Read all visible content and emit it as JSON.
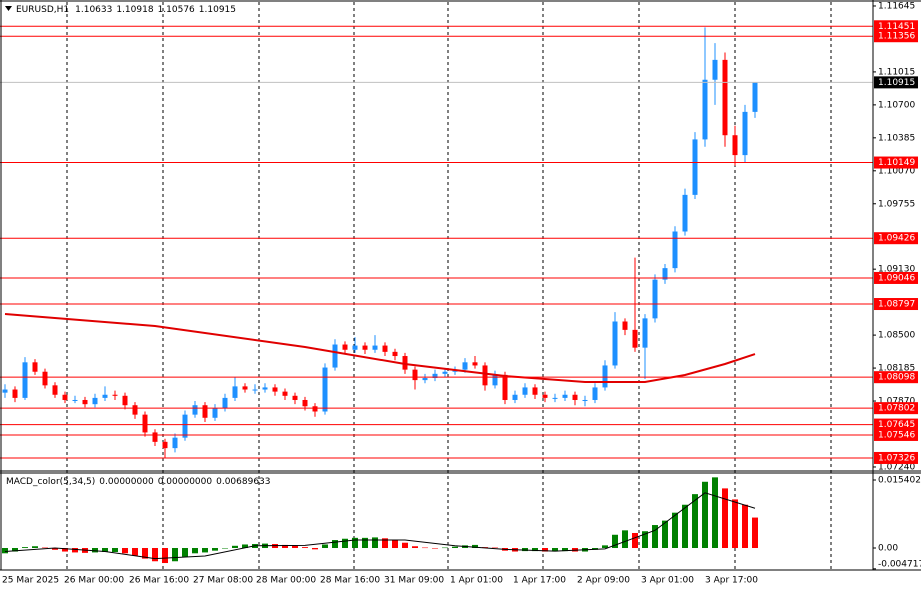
{
  "chart_data": {
    "type": "candlestick",
    "title": "EURUSD,H1",
    "up_color": "#1e90ff",
    "down_color": "#ff0000",
    "ylim": [
      1.07211,
      1.11683
    ],
    "yticks": [
      1.11645,
      1.11015,
      {
        "value": 1.107,
        "label": "1.10700"
      },
      1.10385,
      {
        "value": 1.1007,
        "label": "1.10070"
      },
      1.09755,
      {
        "value": 1.0913,
        "label": "1.09130"
      },
      {
        "value": 1.085,
        "label": "1.08500"
      },
      1.08185,
      {
        "value": 1.0787,
        "label": "1.07870"
      },
      {
        "value": 1.0724,
        "label": "1.07240"
      }
    ],
    "levels": [
      1.11451,
      1.11356,
      1.10149,
      1.09426,
      1.09046,
      1.08797,
      1.08098,
      1.07802,
      1.07645,
      1.07546,
      1.07326
    ],
    "level_color": "#ff0000",
    "x_labels": [
      "25 Mar 2025",
      "26 Mar 00:00",
      "26 Mar 16:00",
      "27 Mar 08:00",
      "28 Mar 00:00",
      "28 Mar 16:00",
      "31 Mar 09:00",
      "1 Apr 01:00",
      "1 Apr 17:00",
      "2 Apr 09:00",
      "3 Apr 01:00",
      "3 Apr 17:00"
    ],
    "candles": [
      [
        1.0795,
        1.0803,
        1.079,
        1.0798
      ],
      [
        1.0798,
        1.0801,
        1.0786,
        1.079
      ],
      [
        1.079,
        1.0829,
        1.0788,
        1.0824
      ],
      [
        1.0824,
        1.0827,
        1.0812,
        1.0815
      ],
      [
        1.0815,
        1.0818,
        1.0799,
        1.0802
      ],
      [
        1.0802,
        1.0805,
        1.079,
        1.0793
      ],
      [
        1.0793,
        1.0796,
        1.0785,
        1.0788
      ],
      [
        1.0788,
        1.0792,
        1.0785,
        1.0788
      ],
      [
        1.0788,
        1.0791,
        1.0781,
        1.0784
      ],
      [
        1.0784,
        1.0794,
        1.0781,
        1.079
      ],
      [
        1.079,
        1.0801,
        1.0787,
        1.0793
      ],
      [
        1.0793,
        1.0797,
        1.0788,
        1.0792
      ],
      [
        1.0792,
        1.0795,
        1.0779,
        1.0783
      ],
      [
        1.0783,
        1.0786,
        1.077,
        1.0774
      ],
      [
        1.0774,
        1.0777,
        1.0753,
        1.0757
      ],
      [
        1.0757,
        1.076,
        1.0744,
        1.0748
      ],
      [
        1.0748,
        1.0751,
        1.0733,
        1.0742
      ],
      [
        1.0742,
        1.0756,
        1.0738,
        1.0752
      ],
      [
        1.0752,
        1.0778,
        1.0749,
        1.0774
      ],
      [
        1.0774,
        1.0787,
        1.0771,
        1.0783
      ],
      [
        1.0783,
        1.0786,
        1.0767,
        1.0771
      ],
      [
        1.0771,
        1.0784,
        1.0768,
        1.078
      ],
      [
        1.078,
        1.0794,
        1.0777,
        1.079
      ],
      [
        1.079,
        1.081,
        1.0787,
        1.0801
      ],
      [
        1.0801,
        1.0804,
        1.0795,
        1.0798
      ],
      [
        1.0798,
        1.0803,
        1.0794,
        1.0798
      ],
      [
        1.0798,
        1.0804,
        1.0795,
        1.08
      ],
      [
        1.08,
        1.0803,
        1.0792,
        1.0796
      ],
      [
        1.0796,
        1.0799,
        1.0788,
        1.0792
      ],
      [
        1.0792,
        1.0795,
        1.0784,
        1.0788
      ],
      [
        1.0788,
        1.0791,
        1.0778,
        1.0782
      ],
      [
        1.0782,
        1.0785,
        1.0772,
        1.0777
      ],
      [
        1.0777,
        1.0823,
        1.0774,
        1.0819
      ],
      [
        1.0819,
        1.0846,
        1.0816,
        1.0841
      ],
      [
        1.0841,
        1.0844,
        1.0832,
        1.0836
      ],
      [
        1.0836,
        1.0848,
        1.0833,
        1.084
      ],
      [
        1.084,
        1.0843,
        1.0832,
        1.0836
      ],
      [
        1.0836,
        1.085,
        1.0833,
        1.084
      ],
      [
        1.084,
        1.0843,
        1.083,
        1.0834
      ],
      [
        1.0834,
        1.0837,
        1.0826,
        1.083
      ],
      [
        1.083,
        1.0833,
        1.0813,
        1.0817
      ],
      [
        1.0817,
        1.082,
        1.0798,
        1.0807
      ],
      [
        1.0807,
        1.0813,
        1.0804,
        1.0809
      ],
      [
        1.0809,
        1.0817,
        1.0806,
        1.0813
      ],
      [
        1.0813,
        1.0818,
        1.081,
        1.0815
      ],
      [
        1.0815,
        1.082,
        1.0812,
        1.0817
      ],
      [
        1.0817,
        1.0828,
        1.0814,
        1.0824
      ],
      [
        1.0824,
        1.083,
        1.0818,
        1.0821
      ],
      [
        1.0821,
        1.0824,
        1.0797,
        1.0802
      ],
      [
        1.0802,
        1.0816,
        1.0799,
        1.0812
      ],
      [
        1.0812,
        1.0815,
        1.0784,
        1.0788
      ],
      [
        1.0788,
        1.0797,
        1.0785,
        1.0793
      ],
      [
        1.0793,
        1.0804,
        1.079,
        1.08
      ],
      [
        1.08,
        1.0803,
        1.0789,
        1.0793
      ],
      [
        1.0793,
        1.0796,
        1.0786,
        1.079
      ],
      [
        1.079,
        1.0794,
        1.0786,
        1.079
      ],
      [
        1.079,
        1.0797,
        1.0787,
        1.0793
      ],
      [
        1.0793,
        1.0796,
        1.0783,
        1.0788
      ],
      [
        1.0788,
        1.0792,
        1.0782,
        1.0788
      ],
      [
        1.0788,
        1.0804,
        1.0785,
        1.08
      ],
      [
        1.08,
        1.0826,
        1.0797,
        1.0821
      ],
      [
        1.0821,
        1.0872,
        1.0818,
        1.0863
      ],
      [
        1.0863,
        1.0866,
        1.085,
        1.0855
      ],
      [
        1.0855,
        1.0924,
        1.0834,
        1.0838
      ],
      [
        1.0838,
        1.087,
        1.0808,
        1.0866
      ],
      [
        1.0866,
        1.0908,
        1.0862,
        1.0903
      ],
      [
        1.0903,
        1.0918,
        1.0899,
        1.0914
      ],
      [
        1.0914,
        1.0954,
        1.091,
        1.0949
      ],
      [
        1.0949,
        1.099,
        1.0945,
        1.0984
      ],
      [
        1.0984,
        1.1044,
        1.098,
        1.1037
      ],
      [
        1.1037,
        1.1144,
        1.103,
        1.1094
      ],
      [
        1.1094,
        1.1129,
        1.107,
        1.1113
      ],
      [
        1.1113,
        1.112,
        1.103,
        1.1041
      ],
      [
        1.1041,
        1.105,
        1.1012,
        1.1022
      ],
      [
        1.1022,
        1.107,
        1.1015,
        1.10633
      ],
      [
        1.10633,
        1.10918,
        1.10576,
        1.10915
      ]
    ],
    "ma": {
      "color": "#e00000",
      "x": [
        0,
        15,
        30,
        40,
        50,
        58,
        64,
        68,
        72,
        75
      ],
      "values": [
        1.08702,
        1.08587,
        1.08386,
        1.08224,
        1.08109,
        1.08052,
        1.08052,
        1.08119,
        1.08224,
        1.08319
      ]
    },
    "price_line_color": "#c0c0c0",
    "macd": {
      "title": "MACD_color(5,34,5)",
      "readout": [
        {
          "value": 0,
          "label": "0.00000000"
        },
        {
          "value": 0,
          "label": "0.00000000"
        }
      ],
      "up_color": "#008000",
      "down_color": "#ff0000",
      "ylim": [
        -0.00498,
        0.01676
      ],
      "yticks": [
        {
          "value": 0.015402,
          "label": "0.0154020"
        },
        {
          "value": 0,
          "label": "0.00"
        },
        -0.0047171
      ],
      "histogram": [
        -0.0012,
        -0.0008,
        0.0002,
        0.0004,
        0.0001,
        -0.0004,
        -0.0008,
        -0.001,
        -0.0011,
        -0.001,
        -0.0009,
        -0.0009,
        -0.0012,
        -0.0017,
        -0.0024,
        -0.003,
        -0.0034,
        -0.003,
        -0.002,
        -0.0012,
        -0.001,
        -0.0006,
        -0.0001,
        0.0005,
        0.0008,
        0.0009,
        0.001,
        0.0009,
        0.0007,
        0.0005,
        0.0002,
        -0.0003,
        0.0008,
        0.0018,
        0.0021,
        0.0023,
        0.0023,
        0.0024,
        0.0022,
        0.0019,
        0.0012,
        0.0004,
        0.0001,
        0.0,
        0.0001,
        0.0003,
        0.0006,
        0.0007,
        0.0002,
        0.0001,
        -0.0006,
        -0.0008,
        -0.0007,
        -0.0007,
        -0.0008,
        -0.0008,
        -0.0007,
        -0.0008,
        -0.0008,
        -0.0004,
        0.0006,
        0.003,
        0.004,
        0.0034,
        0.0038,
        0.0052,
        0.0062,
        0.008,
        0.0098,
        0.0122,
        0.015,
        0.016,
        0.0135,
        0.011,
        0.0098,
        0.00689633
      ],
      "signal": {
        "color": "#000000",
        "x": [
          0,
          5,
          10,
          15,
          20,
          25,
          30,
          35,
          40,
          45,
          50,
          55,
          60,
          65,
          70,
          75
        ],
        "values": [
          -0.0008,
          0.0,
          -0.0008,
          -0.0024,
          -0.0018,
          0.0005,
          0.0006,
          0.0018,
          0.0018,
          0.0005,
          -0.0003,
          -0.0007,
          -0.0002,
          0.004,
          0.0125,
          0.009
        ]
      }
    }
  }
}
